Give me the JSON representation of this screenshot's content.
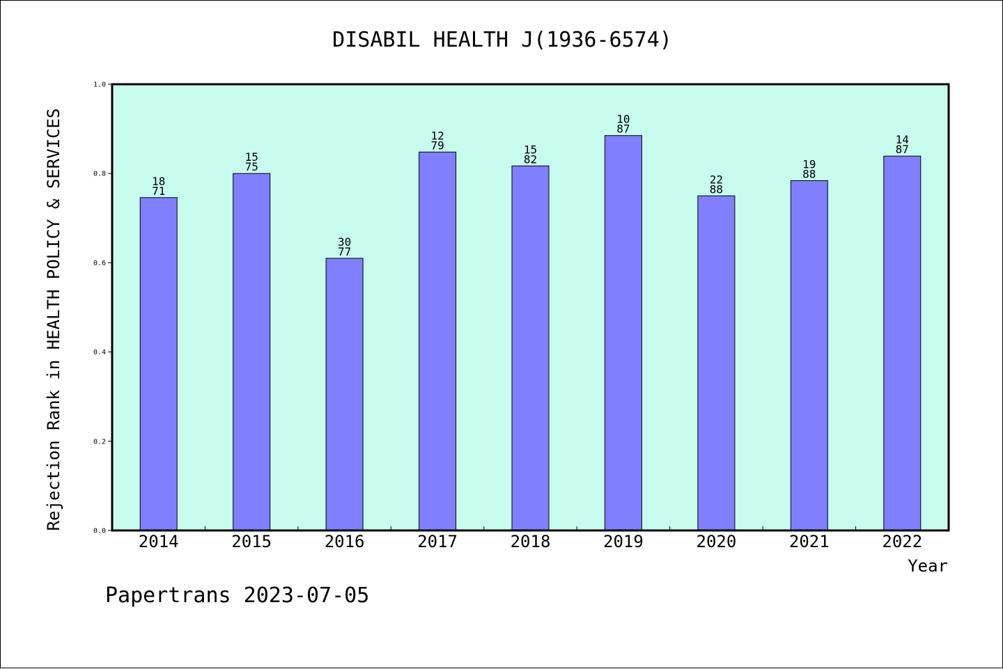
{
  "chart_data": {
    "type": "bar",
    "title": "DISABIL HEALTH J(1936-6574)",
    "xlabel": "Year",
    "ylabel": "Rejection Rank in HEALTH POLICY & SERVICES",
    "ylim": [
      0,
      1.0
    ],
    "yticks": [
      "0.0",
      "0.2",
      "0.4",
      "0.6",
      "0.8",
      "1.0"
    ],
    "categories": [
      "2014",
      "2015",
      "2016",
      "2017",
      "2018",
      "2019",
      "2020",
      "2021",
      "2022"
    ],
    "values": [
      0.746,
      0.8,
      0.61,
      0.848,
      0.817,
      0.885,
      0.75,
      0.784,
      0.839
    ],
    "bar_labels": [
      [
        "18",
        "71"
      ],
      [
        "15",
        "75"
      ],
      [
        "30",
        "77"
      ],
      [
        "12",
        "79"
      ],
      [
        "15",
        "82"
      ],
      [
        "10",
        "87"
      ],
      [
        "22",
        "88"
      ],
      [
        "19",
        "88"
      ],
      [
        "14",
        "87"
      ]
    ],
    "plot_background": "#c8fcef",
    "bar_color": "#8080ff",
    "grid": false,
    "legend": "none"
  },
  "footer": "Papertrans 2023-07-05"
}
